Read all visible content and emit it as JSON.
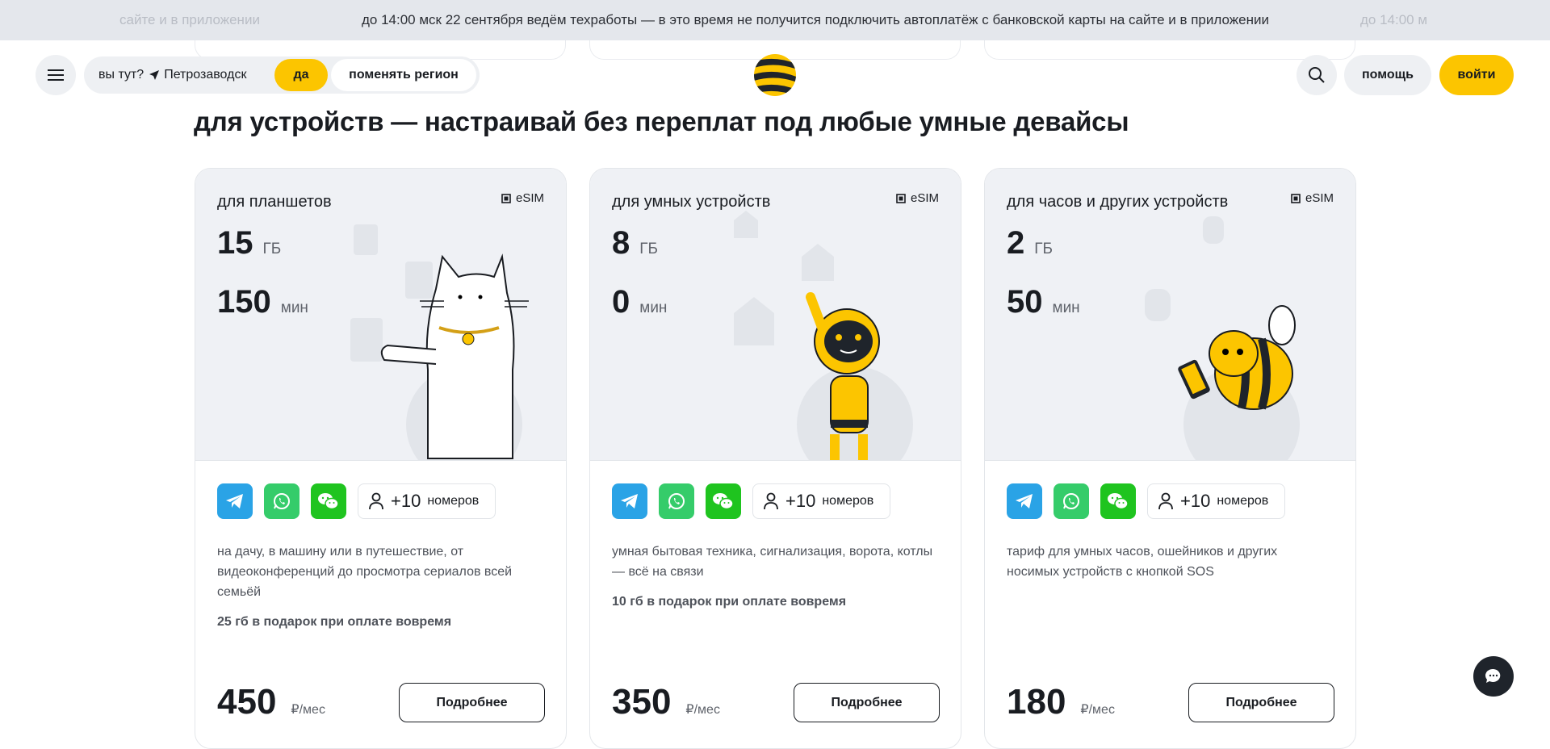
{
  "banner": {
    "text": "до 14:00 мск 22 сентября ведём техработы — в это время не получится подключить автоплатёж с банковской карты на сайте и в приложении",
    "left_fragment": "сайте и в приложении",
    "right_fragment": "до 14:00 м"
  },
  "header": {
    "menu_icon": "hamburger-icon",
    "region_question": "вы тут?",
    "city": "Петрозаводск",
    "yes_label": "да",
    "change_label": "поменять регион",
    "search_icon": "search-icon",
    "help_label": "помощь",
    "login_label": "войти"
  },
  "colors": {
    "brand_yellow": "#fcc500",
    "telegram": "#2aa3e6",
    "whatsapp": "#35cc6a",
    "wechat": "#1fc41f",
    "dark": "#191c21"
  },
  "section_title": "для устройств — настраивай без переплат под любые умные девайсы",
  "cards": [
    {
      "title": "для планшетов",
      "esim": "eSIM",
      "gb": "15",
      "gb_unit": "ГБ",
      "min": "150",
      "min_unit": "мин",
      "numbers_plus": "+10",
      "numbers_label": "номеров",
      "description": "на дачу, в машину или в путешествие, от видеоконференций до просмотра сериалов всей семьёй",
      "bonus": "25 гб в подарок при оплате вовремя",
      "price": "450",
      "price_unit": "₽/мес",
      "button": "Подробнее"
    },
    {
      "title": "для умных устройств",
      "esim": "eSIM",
      "gb": "8",
      "gb_unit": "ГБ",
      "min": "0",
      "min_unit": "мин",
      "numbers_plus": "+10",
      "numbers_label": "номеров",
      "description": "умная бытовая техника, сигнализация, ворота, котлы — всё на связи",
      "bonus": "10 гб в подарок при оплате вовремя",
      "price": "350",
      "price_unit": "₽/мес",
      "button": "Подробнее"
    },
    {
      "title": "для часов и других устройств",
      "esim": "eSIM",
      "gb": "2",
      "gb_unit": "ГБ",
      "min": "50",
      "min_unit": "мин",
      "numbers_plus": "+10",
      "numbers_label": "номеров",
      "description": "тариф для умных часов, ошейников и других носимых устройств с кнопкой SOS",
      "price": "180",
      "price_unit": "₽/мес",
      "button": "Подробнее"
    }
  ]
}
